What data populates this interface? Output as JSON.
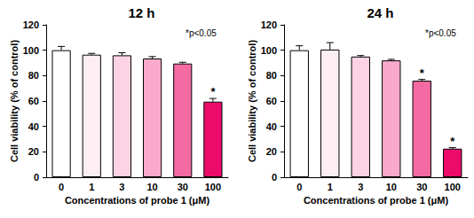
{
  "chart_data": [
    {
      "type": "bar",
      "title": "12 h",
      "x_label": "Concentrations of probe 1 (μM)",
      "y_label": "Cell viability (% of control)",
      "annotation": "*p<0.05",
      "categories": [
        "0",
        "1",
        "3",
        "10",
        "30",
        "100"
      ],
      "values": [
        100,
        96.5,
        96,
        93.5,
        89.5,
        59.5
      ],
      "errors": [
        3,
        1,
        2,
        1.5,
        1,
        2.5
      ],
      "significant": [
        false,
        false,
        false,
        false,
        false,
        true
      ],
      "significance_label": "*",
      "colors": [
        "#ffffff",
        "#fdeef4",
        "#fcd3e3",
        "#f9a9c9",
        "#f46aa2",
        "#ec0b6b"
      ],
      "ylim": [
        0,
        120
      ],
      "yticks": [
        0,
        20,
        40,
        60,
        80,
        100,
        120
      ],
      "grid": false
    },
    {
      "type": "bar",
      "title": "24 h",
      "x_label": "Concentrations of probe 1 (μM)",
      "y_label": "Cell viability (% of control)",
      "annotation": "*p<0.05",
      "categories": [
        "0",
        "1",
        "3",
        "10",
        "30",
        "100"
      ],
      "values": [
        100,
        100.5,
        95,
        92,
        76,
        22.5
      ],
      "errors": [
        3.5,
        5.5,
        0.8,
        0.8,
        1,
        0.8
      ],
      "significant": [
        false,
        false,
        false,
        false,
        true,
        true
      ],
      "significance_label": "*",
      "colors": [
        "#ffffff",
        "#fdeef4",
        "#fcd3e3",
        "#f9a9c9",
        "#f46aa2",
        "#ec0b6b"
      ],
      "ylim": [
        0,
        120
      ],
      "yticks": [
        0,
        20,
        40,
        60,
        80,
        100,
        120
      ],
      "grid": false
    }
  ]
}
